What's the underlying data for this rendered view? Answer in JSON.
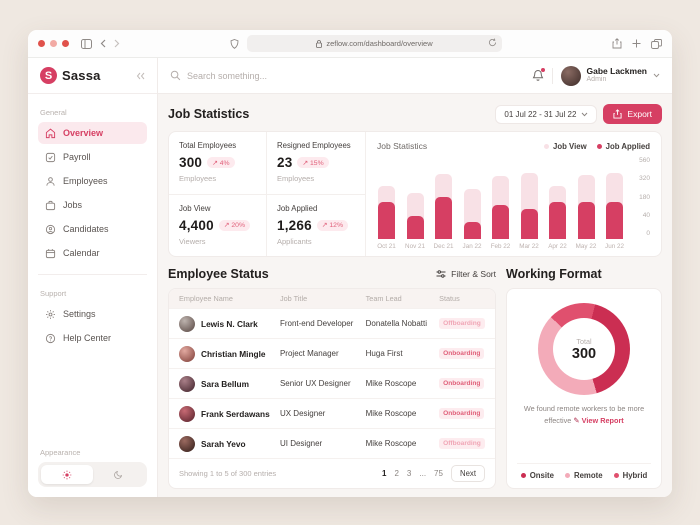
{
  "browser": {
    "url": "zeflow.com/dashboard/overview"
  },
  "icons": {
    "trend_up": "↗",
    "pen": "✎"
  },
  "sidebar": {
    "logo_letter": "S",
    "logo_text": "Sassa",
    "general_label": "General",
    "general_items": [
      {
        "label": "Overview"
      },
      {
        "label": "Payroll"
      },
      {
        "label": "Employees"
      },
      {
        "label": "Jobs"
      },
      {
        "label": "Candidates"
      },
      {
        "label": "Calendar"
      }
    ],
    "support_label": "Support",
    "support_items": [
      {
        "label": "Settings"
      },
      {
        "label": "Help Center"
      }
    ],
    "appearance_label": "Appearance"
  },
  "header": {
    "search_placeholder": "Search something...",
    "user": {
      "name": "Gabe Lackmen",
      "role": "Admin"
    }
  },
  "job_statistics": {
    "title": "Job Statistics",
    "date_range": "01 Jul 22 - 31 Jul 22",
    "export_label": "Export",
    "stats": [
      {
        "label": "Total Employees",
        "value": "300",
        "delta": "4%",
        "unit": "Employees"
      },
      {
        "label": "Resigned Employees",
        "value": "23",
        "delta": "15%",
        "unit": "Employees"
      },
      {
        "label": "Job View",
        "value": "4,400",
        "delta": "20%",
        "unit": "Viewers"
      },
      {
        "label": "Job Applied",
        "value": "1,266",
        "delta": "12%",
        "unit": "Applicants"
      }
    ]
  },
  "chart_data": [
    {
      "type": "bar",
      "title": "Job Statistics",
      "categories": [
        "Oct 21",
        "Nov 21",
        "Dec 21",
        "Jan 22",
        "Feb 22",
        "Mar 22",
        "Apr 22",
        "May 22",
        "Jun 22"
      ],
      "series": [
        {
          "name": "Job View",
          "color": "#f8e1e6",
          "values": [
            410,
            360,
            505,
            390,
            490,
            515,
            410,
            500,
            515
          ]
        },
        {
          "name": "Job Applied",
          "color": "#d63f63",
          "values": [
            290,
            180,
            330,
            130,
            265,
            230,
            290,
            290,
            290
          ]
        }
      ],
      "yticks": [
        560,
        320,
        180,
        40,
        0
      ],
      "ylim": [
        0,
        560
      ],
      "legend_position": "top-right",
      "grid": false
    },
    {
      "type": "pie",
      "title": "Working Format",
      "labels": [
        "Onsite",
        "Remote",
        "Hybrid"
      ],
      "values": [
        125,
        125,
        50
      ],
      "colors": [
        "#cb2e52",
        "#f3abb9",
        "#e0506e"
      ],
      "center_label": "Total",
      "center_value": 300
    }
  ],
  "employee_status": {
    "title": "Employee Status",
    "filter_label": "Filter & Sort",
    "columns": [
      "Employee Name",
      "Job Title",
      "Team Lead",
      "Status"
    ],
    "rows": [
      {
        "name": "Lewis N. Clark",
        "job_title": "Front-end Developer",
        "team_lead": "Donatella Nobatti",
        "status": "Offboarding"
      },
      {
        "name": "Christian Mingle",
        "job_title": "Project Manager",
        "team_lead": "Huga First",
        "status": "Onboarding"
      },
      {
        "name": "Sara Bellum",
        "job_title": "Senior UX Designer",
        "team_lead": "Mike Roscope",
        "status": "Onboarding"
      },
      {
        "name": "Frank Serdawans",
        "job_title": "UX Designer",
        "team_lead": "Mike Roscope",
        "status": "Onboarding"
      },
      {
        "name": "Sarah Yevo",
        "job_title": "UI Designer",
        "team_lead": "Mike Roscope",
        "status": "Offboarding"
      }
    ],
    "footer": "Showing 1 to 5 of 300 entries",
    "pages": [
      "1",
      "2",
      "3",
      "...",
      "75"
    ],
    "next_label": "Next"
  },
  "working_format": {
    "title": "Working Format",
    "total_label": "Total",
    "total_value": "300",
    "caption_line1": "We found remote workers to be more",
    "caption_line2": "effective",
    "view_report_label": "View Report",
    "legend": [
      "Onsite",
      "Remote",
      "Hybrid"
    ]
  },
  "colors": {
    "accent": "#d63f63",
    "bar_light": "#f8e1e6",
    "badge_bg": "#fdeaee",
    "badge_text": "#e0607a",
    "offboarding_text": "#f0a6b6",
    "donut_onsite": "#cb2e52",
    "donut_remote": "#f3abb9",
    "donut_hybrid": "#e0506e"
  }
}
